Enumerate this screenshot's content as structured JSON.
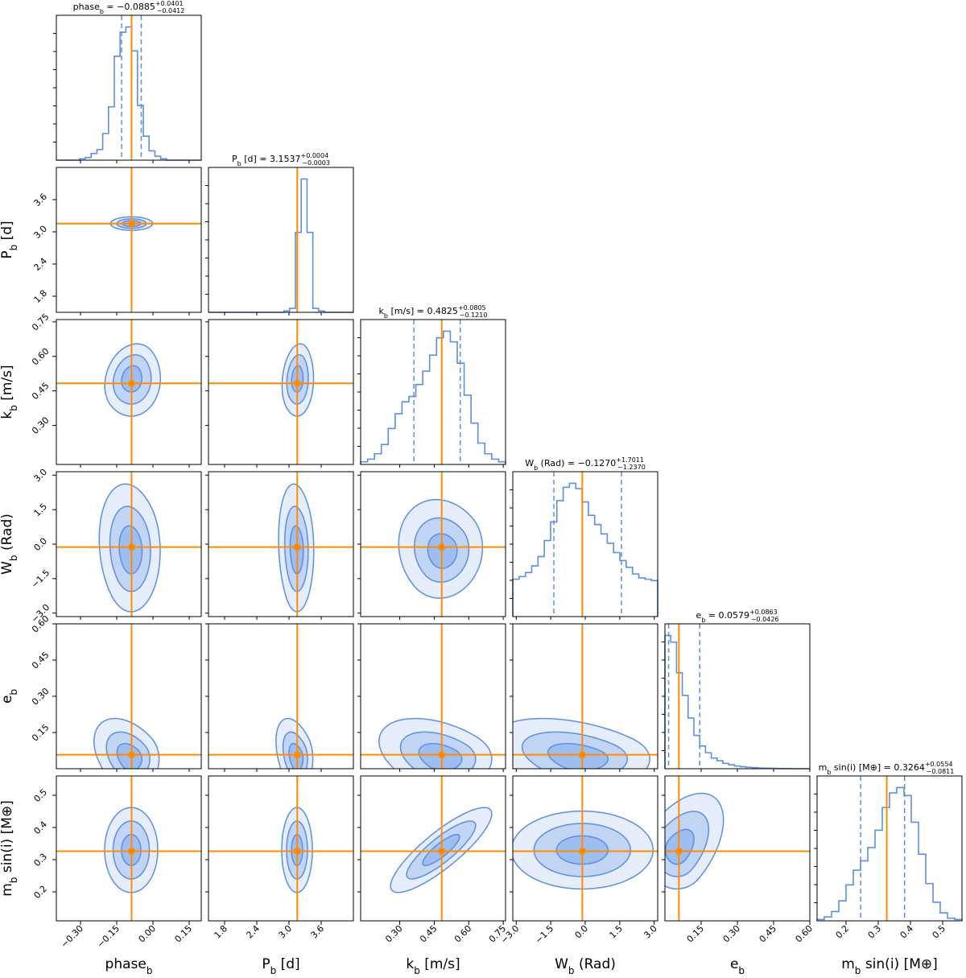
{
  "chart_data": {
    "type": "corner",
    "colors": {
      "hist": "#5b8ee6",
      "truth": "#ff8c00",
      "fill": "#5b8ee6"
    },
    "parameters": [
      {
        "name": "phase_b",
        "axis_label": {
          "base": "phase",
          "sub": "b",
          "suffix": ""
        },
        "title": {
          "base": "phase",
          "sub": "b",
          "unit": "",
          "value": "−0.0885",
          "plus": "+0.0401",
          "minus": "−0.0412"
        },
        "range": [
          -0.4,
          0.2
        ],
        "ticks": [
          -0.3,
          -0.15,
          0.0,
          0.15
        ],
        "tick_labels": [
          "−0.30",
          "−0.15",
          "0.00",
          "0.15"
        ],
        "truth": -0.0885,
        "q": [
          -0.1297,
          -0.0484
        ],
        "hist": [
          0,
          0,
          0,
          0,
          0.01,
          0.02,
          0.05,
          0.08,
          0.2,
          0.4,
          0.78,
          0.96,
          1.0,
          0.82,
          0.41,
          0.18,
          0.07,
          0.03,
          0.01,
          0,
          0,
          0,
          0,
          0,
          0
        ]
      },
      {
        "name": "P_b",
        "axis_label": {
          "base": "P",
          "sub": "b",
          "suffix": " [d]"
        },
        "title": {
          "base": "P",
          "sub": "b",
          "unit": " [d]",
          "value": "3.1537",
          "plus": "+0.0004",
          "minus": "−0.0003"
        },
        "range": [
          1.5,
          4.2
        ],
        "ticks": [
          1.8,
          2.4,
          3.0,
          3.6
        ],
        "tick_labels": [
          "1.8",
          "2.4",
          "3.0",
          "3.6"
        ],
        "truth": 3.1537,
        "q": [
          3.1534,
          3.1541
        ],
        "hist": [
          0,
          0,
          0,
          0,
          0,
          0,
          0,
          0,
          0,
          0,
          0,
          0,
          0,
          0.01,
          0.03,
          0.6,
          1.0,
          0.6,
          0.03,
          0.01,
          0,
          0,
          0,
          0,
          0
        ]
      },
      {
        "name": "k_b",
        "axis_label": {
          "base": "k",
          "sub": "b",
          "suffix": " [m/s]"
        },
        "title": {
          "base": "k",
          "sub": "b",
          "unit": " [m/s]",
          "value": "0.4825",
          "plus": "+0.0805",
          "minus": "−0.1210"
        },
        "range": [
          0.13,
          0.76
        ],
        "ticks": [
          0.3,
          0.45,
          0.6,
          0.75
        ],
        "tick_labels": [
          "0.30",
          "0.45",
          "0.60",
          "0.75"
        ],
        "truth": 0.4825,
        "q": [
          0.3615,
          0.563
        ],
        "hist": [
          0.02,
          0.04,
          0.08,
          0.15,
          0.27,
          0.38,
          0.47,
          0.51,
          0.6,
          0.7,
          0.82,
          0.95,
          1.0,
          0.92,
          0.76,
          0.52,
          0.31,
          0.16,
          0.08,
          0.04,
          0.02
        ]
      },
      {
        "name": "W_b",
        "axis_label": {
          "base": "W",
          "sub": "b",
          "suffix": " (Rad)"
        },
        "title": {
          "base": "W",
          "sub": "b",
          "unit": " (Rad)",
          "value": "−0.1270",
          "plus": "+1.7011",
          "minus": "−1.2370"
        },
        "range": [
          -3.15,
          3.15
        ],
        "ticks": [
          -3.0,
          -1.5,
          0.0,
          1.5,
          3.0
        ],
        "tick_labels": [
          "−3.0",
          "−1.5",
          "0.0",
          "1.5",
          "3.0"
        ],
        "truth": -0.127,
        "q": [
          -1.364,
          1.5741
        ],
        "hist": [
          0.28,
          0.3,
          0.33,
          0.38,
          0.45,
          0.57,
          0.71,
          0.87,
          0.97,
          1.0,
          0.96,
          0.86,
          0.76,
          0.69,
          0.62,
          0.55,
          0.48,
          0.42,
          0.37,
          0.32,
          0.29,
          0.28,
          0.27
        ]
      },
      {
        "name": "e_b",
        "axis_label": {
          "base": "e",
          "sub": "b",
          "suffix": ""
        },
        "title": {
          "base": "e",
          "sub": "b",
          "unit": "",
          "value": "0.0579",
          "plus": "+0.0863",
          "minus": "−0.0426"
        },
        "range": [
          0.0,
          0.6
        ],
        "ticks": [
          0.15,
          0.3,
          0.45,
          0.6
        ],
        "tick_labels": [
          "0.15",
          "0.30",
          "0.45",
          "0.60"
        ],
        "truth": 0.0579,
        "q": [
          0.0153,
          0.1442
        ],
        "hist": [
          1.0,
          0.95,
          0.72,
          0.55,
          0.38,
          0.25,
          0.17,
          0.12,
          0.08,
          0.06,
          0.04,
          0.03,
          0.02,
          0.015,
          0.01,
          0.008,
          0.005,
          0.004,
          0.003,
          0.002,
          0.001,
          0.001,
          0.0,
          0.0,
          0.0
        ]
      },
      {
        "name": "m_b sin(i)",
        "axis_label": {
          "base": "m",
          "sub": "b",
          "suffix": " sin(i) [M⊕]"
        },
        "title": {
          "base": "m",
          "sub": "b",
          "unit": " sin(i) [M⊕]",
          "value": "0.3264",
          "plus": "+0.0554",
          "minus": "−0.0811"
        },
        "range": [
          0.11,
          0.56
        ],
        "ticks": [
          0.2,
          0.3,
          0.4,
          0.5
        ],
        "tick_labels": [
          "0.2",
          "0.3",
          "0.4",
          "0.5"
        ],
        "truth": 0.3264,
        "q": [
          0.2453,
          0.3818
        ],
        "hist": [
          0.01,
          0.03,
          0.07,
          0.15,
          0.27,
          0.38,
          0.45,
          0.55,
          0.68,
          0.85,
          0.96,
          1.0,
          0.94,
          0.74,
          0.5,
          0.28,
          0.14,
          0.06,
          0.02,
          0.01
        ]
      }
    ],
    "contours": [
      {
        "row": 1,
        "col": 0,
        "center": [
          -0.0885,
          3.1537
        ],
        "sx": 0.038,
        "sy": 0.055,
        "rho": 0.0,
        "skew": [
          0,
          0
        ],
        "levels": [
          1.0,
          1.6,
          2.3
        ]
      },
      {
        "row": 2,
        "col": 0,
        "center": [
          -0.09,
          0.505
        ],
        "sx": 0.055,
        "sy": 0.075,
        "rho": 0.0,
        "skew": [
          0,
          -0.2
        ],
        "levels": [
          0.8,
          1.5,
          2.2
        ]
      },
      {
        "row": 2,
        "col": 1,
        "center": [
          3.15,
          0.505
        ],
        "sx": 0.14,
        "sy": 0.075,
        "rho": 0.0,
        "skew": [
          0,
          -0.2
        ],
        "levels": [
          0.8,
          1.5,
          2.2
        ]
      },
      {
        "row": 3,
        "col": 0,
        "center": [
          -0.09,
          -0.3
        ],
        "sx": 0.05,
        "sy": 1.1,
        "rho": 0.0,
        "skew": [
          0,
          0.2
        ],
        "levels": [
          0.9,
          1.6,
          2.4
        ]
      },
      {
        "row": 3,
        "col": 1,
        "center": [
          3.15,
          -0.3
        ],
        "sx": 0.13,
        "sy": 1.1,
        "rho": 0.0,
        "skew": [
          0,
          0.2
        ],
        "levels": [
          0.9,
          1.6,
          2.4
        ]
      },
      {
        "row": 3,
        "col": 2,
        "center": [
          0.49,
          -0.35
        ],
        "sx": 0.085,
        "sy": 1.0,
        "rho": 0.1,
        "skew": [
          0,
          0.3
        ],
        "levels": [
          0.7,
          1.3,
          2.0
        ]
      },
      {
        "row": 4,
        "col": 0,
        "center": [
          -0.09,
          0.04
        ],
        "sx": 0.055,
        "sy": 0.06,
        "rho": 0.0,
        "skew": [
          0,
          0.6
        ],
        "levels": [
          0.8,
          1.4,
          2.1
        ]
      },
      {
        "row": 4,
        "col": 1,
        "center": [
          3.15,
          0.04
        ],
        "sx": 0.14,
        "sy": 0.06,
        "rho": 0.0,
        "skew": [
          0,
          0.6
        ],
        "levels": [
          0.8,
          1.4,
          2.1
        ]
      },
      {
        "row": 4,
        "col": 2,
        "center": [
          0.49,
          0.04
        ],
        "sx": 0.1,
        "sy": 0.06,
        "rho": 0.0,
        "skew": [
          0,
          0.6
        ],
        "levels": [
          0.8,
          1.4,
          2.1
        ]
      },
      {
        "row": 4,
        "col": 3,
        "center": [
          -0.13,
          0.04
        ],
        "sx": 1.4,
        "sy": 0.06,
        "rho": 0.0,
        "skew": [
          0,
          0.6
        ],
        "levels": [
          0.8,
          1.4,
          2.1
        ]
      },
      {
        "row": 5,
        "col": 0,
        "center": [
          -0.09,
          0.33
        ],
        "sx": 0.05,
        "sy": 0.06,
        "rho": 0.0,
        "skew": [
          0,
          0
        ],
        "levels": [
          0.8,
          1.5,
          2.2
        ]
      },
      {
        "row": 5,
        "col": 1,
        "center": [
          3.15,
          0.33
        ],
        "sx": 0.13,
        "sy": 0.06,
        "rho": 0.0,
        "skew": [
          0,
          0
        ],
        "levels": [
          0.8,
          1.5,
          2.2
        ]
      },
      {
        "row": 5,
        "col": 2,
        "center": [
          0.48,
          0.33
        ],
        "sx": 0.1,
        "sy": 0.06,
        "rho": 0.85,
        "skew": [
          0,
          0
        ],
        "levels": [
          0.8,
          1.5,
          2.2
        ]
      },
      {
        "row": 5,
        "col": 3,
        "center": [
          -0.13,
          0.33
        ],
        "sx": 1.4,
        "sy": 0.055,
        "rho": 0.0,
        "skew": [
          0,
          0
        ],
        "levels": [
          0.8,
          1.5,
          2.2
        ]
      },
      {
        "row": 5,
        "col": 4,
        "center": [
          0.05,
          0.33
        ],
        "sx": 0.06,
        "sy": 0.055,
        "rho": 0.0,
        "skew": [
          0.8,
          0
        ],
        "levels": [
          0.8,
          1.5,
          2.2
        ]
      }
    ]
  }
}
